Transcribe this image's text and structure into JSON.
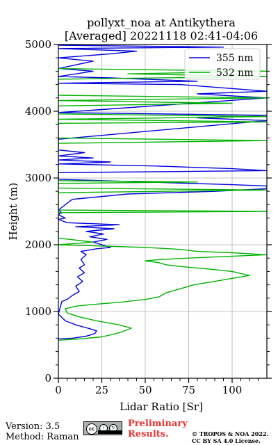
{
  "footer": {
    "version": "Version: 3.5",
    "method": "Method: Raman",
    "preliminary": "Preliminary",
    "results": "Results.",
    "copyright_line1": "© TROPOS & NOA 2022.",
    "copyright_line2": "CC BY SA 4.0 License.",
    "license_badge": "cc-by-sa-icon"
  },
  "chart_data": {
    "type": "line",
    "title": "pollyxt_noa at Antikythera",
    "subtitle": "[Averaged] 20221118 02:41-04:06",
    "xlabel": "Lidar Ratio [Sr]",
    "ylabel": "Height (m)",
    "xlim": [
      0,
      120
    ],
    "ylim": [
      0,
      5000
    ],
    "xticks": [
      0,
      25,
      50,
      75,
      100
    ],
    "yticks": [
      0,
      1000,
      2000,
      3000,
      4000,
      5000
    ],
    "grid": true,
    "legend_position": "top-right",
    "colors": {
      "355": "#0000dd",
      "532": "#00b200"
    },
    "series": [
      {
        "name": "355 nm",
        "color": "#0000dd",
        "points": [
          [
            0,
            590
          ],
          [
            8,
            600
          ],
          [
            16,
            630
          ],
          [
            21,
            670
          ],
          [
            22,
            710
          ],
          [
            17,
            750
          ],
          [
            10,
            800
          ],
          [
            4,
            860
          ],
          [
            0,
            960
          ],
          [
            2,
            1150
          ],
          [
            5,
            1180
          ],
          [
            8,
            1240
          ],
          [
            12,
            1300
          ],
          [
            10,
            1380
          ],
          [
            14,
            1450
          ],
          [
            11,
            1520
          ],
          [
            15,
            1580
          ],
          [
            12,
            1650
          ],
          [
            15,
            1700
          ],
          [
            13,
            1780
          ],
          [
            16,
            1850
          ],
          [
            13,
            1900
          ],
          [
            22,
            1940
          ],
          [
            30,
            1960
          ],
          [
            25,
            2000
          ],
          [
            20,
            2040
          ],
          [
            28,
            2080
          ],
          [
            18,
            2120
          ],
          [
            26,
            2160
          ],
          [
            16,
            2200
          ],
          [
            32,
            2240
          ],
          [
            10,
            2270
          ],
          [
            35,
            2300
          ],
          [
            5,
            2330
          ],
          [
            0,
            2380
          ],
          [
            4,
            2400
          ],
          [
            0,
            2450
          ],
          [
            2,
            2480
          ],
          [
            0,
            2520
          ],
          [
            8,
            2680
          ],
          [
            40,
            2760
          ],
          [
            90,
            2800
          ],
          [
            120,
            2840
          ],
          [
            120,
            2880
          ],
          [
            100,
            2900
          ],
          [
            0,
            2980
          ],
          [
            0,
            3080
          ],
          [
            120,
            3110
          ],
          [
            100,
            3140
          ],
          [
            55,
            3180
          ],
          [
            0,
            3210
          ],
          [
            30,
            3240
          ],
          [
            0,
            3270
          ],
          [
            20,
            3300
          ],
          [
            0,
            3330
          ],
          [
            15,
            3380
          ],
          [
            0,
            3420
          ],
          [
            0,
            3580
          ],
          [
            120,
            3860
          ],
          [
            80,
            3900
          ],
          [
            120,
            3940
          ],
          [
            0,
            3980
          ],
          [
            120,
            4200
          ],
          [
            80,
            4260
          ],
          [
            120,
            4300
          ],
          [
            95,
            4350
          ],
          [
            70,
            4400
          ],
          [
            0,
            4420
          ],
          [
            80,
            4450
          ],
          [
            30,
            4500
          ],
          [
            0,
            4520
          ],
          [
            20,
            4600
          ],
          [
            0,
            4640
          ],
          [
            20,
            4750
          ],
          [
            0,
            4800
          ],
          [
            30,
            4860
          ],
          [
            45,
            4900
          ],
          [
            0,
            4940
          ],
          [
            95,
            4960
          ],
          [
            0,
            4990
          ]
        ]
      },
      {
        "name": "532 nm",
        "color": "#00b200",
        "points": [
          [
            0,
            570
          ],
          [
            12,
            590
          ],
          [
            25,
            620
          ],
          [
            35,
            680
          ],
          [
            42,
            750
          ],
          [
            35,
            800
          ],
          [
            22,
            860
          ],
          [
            12,
            920
          ],
          [
            5,
            980
          ],
          [
            4,
            1040
          ],
          [
            10,
            1080
          ],
          [
            22,
            1110
          ],
          [
            36,
            1140
          ],
          [
            50,
            1180
          ],
          [
            58,
            1220
          ],
          [
            62,
            1280
          ],
          [
            70,
            1340
          ],
          [
            78,
            1400
          ],
          [
            92,
            1460
          ],
          [
            110,
            1540
          ],
          [
            100,
            1600
          ],
          [
            85,
            1640
          ],
          [
            72,
            1670
          ],
          [
            62,
            1700
          ],
          [
            58,
            1730
          ],
          [
            50,
            1760
          ],
          [
            60,
            1780
          ],
          [
            75,
            1800
          ],
          [
            120,
            1850
          ],
          [
            100,
            1880
          ],
          [
            80,
            1900
          ],
          [
            70,
            1930
          ],
          [
            50,
            1960
          ],
          [
            0,
            2000
          ],
          [
            20,
            2040
          ],
          [
            0,
            2100
          ],
          [
            0,
            2480
          ],
          [
            120,
            2500
          ],
          [
            0,
            2520
          ],
          [
            0,
            2780
          ],
          [
            120,
            2820
          ],
          [
            0,
            2850
          ],
          [
            0,
            2920
          ],
          [
            80,
            2940
          ],
          [
            0,
            2960
          ],
          [
            0,
            3520
          ],
          [
            120,
            3560
          ],
          [
            0,
            3600
          ],
          [
            0,
            3820
          ],
          [
            120,
            3840
          ],
          [
            0,
            3880
          ],
          [
            120,
            3920
          ],
          [
            0,
            3960
          ],
          [
            0,
            4080
          ],
          [
            100,
            4120
          ],
          [
            0,
            4160
          ],
          [
            120,
            4200
          ],
          [
            0,
            4240
          ],
          [
            0,
            4480
          ],
          [
            120,
            4520
          ],
          [
            40,
            4560
          ],
          [
            120,
            4600
          ],
          [
            0,
            4640
          ]
        ]
      }
    ]
  }
}
